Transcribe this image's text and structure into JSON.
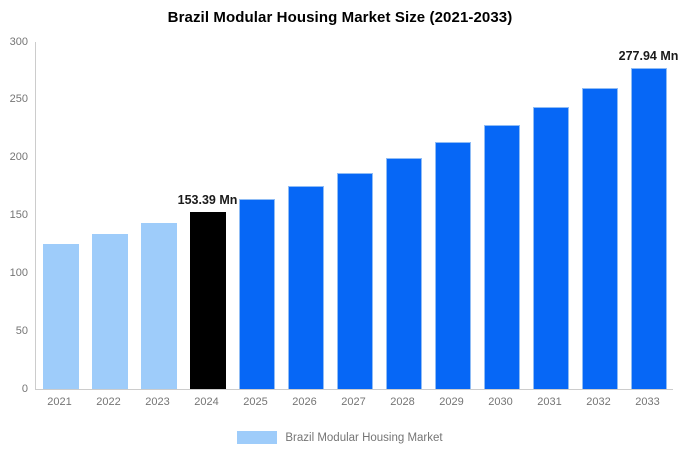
{
  "chart_data": {
    "type": "bar",
    "title": "Brazil Modular Housing Market Size (2021-2033)",
    "categories": [
      "2021",
      "2022",
      "2023",
      "2024",
      "2025",
      "2026",
      "2027",
      "2028",
      "2029",
      "2030",
      "2031",
      "2032",
      "2033"
    ],
    "values": [
      125.8,
      134.4,
      143.6,
      153.39,
      163.9,
      175.1,
      187.0,
      199.8,
      213.4,
      228.0,
      243.6,
      260.2,
      277.94
    ],
    "bar_roles": [
      "historical",
      "historical",
      "historical",
      "highlight",
      "forecast",
      "forecast",
      "forecast",
      "forecast",
      "forecast",
      "forecast",
      "forecast",
      "forecast",
      "forecast"
    ],
    "colors": {
      "historical": "#9ECCFA",
      "highlight": "#000000",
      "forecast": "#0667F6",
      "forecast_border": "#8FBCF5",
      "axis_line": "#CCCCCC",
      "tick_label": "#757575",
      "annotation_text": "#1A1A1A"
    },
    "ylim": [
      0,
      300
    ],
    "yticks": [
      "0",
      "50",
      "100",
      "150",
      "200",
      "250",
      "300"
    ],
    "grid": "off",
    "legend_position": "bottom",
    "annotations": [
      {
        "category": "2024",
        "text": "153.39 Mn"
      },
      {
        "category": "2033",
        "text": "277.94 Mn"
      }
    ],
    "legend": {
      "items": [
        {
          "label": "Brazil Modular Housing Market",
          "swatch_color": "#9ECCFA"
        }
      ]
    }
  }
}
